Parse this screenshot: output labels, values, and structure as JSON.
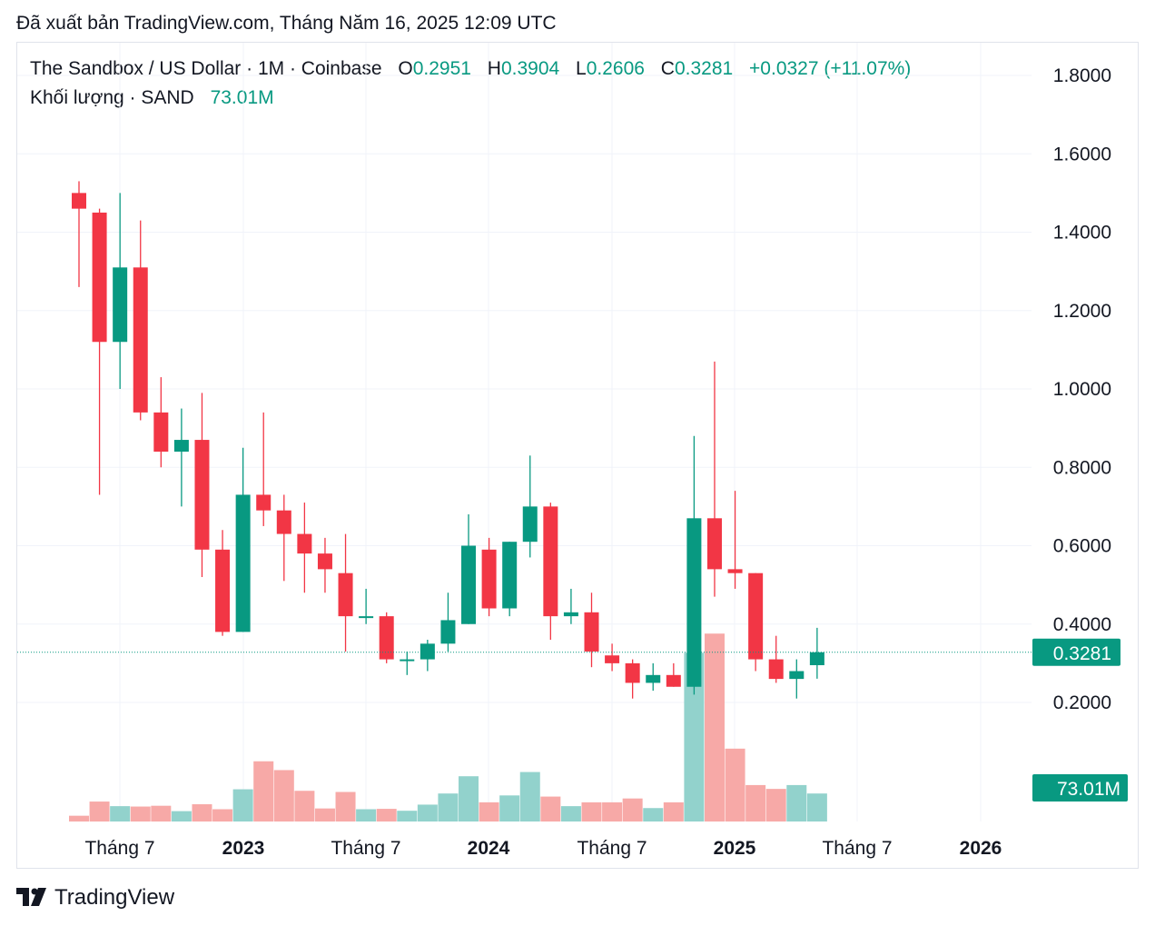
{
  "header": {
    "published": "Đã xuất bản TradingView.com, Tháng Năm 16, 2025 12:09 UTC"
  },
  "legend": {
    "symbol": "The Sandbox / US Dollar · 1M · Coinbase",
    "o_label": "O",
    "o_value": "0.2951",
    "h_label": "H",
    "h_value": "0.3904",
    "l_label": "L",
    "l_value": "0.2606",
    "c_label": "C",
    "c_value": "0.3281",
    "change": "+0.0327 (+11.07%)",
    "volume_label": "Khối lượng · SAND",
    "volume_value": "73.01M"
  },
  "price_badge": "0.3281",
  "volume_badge": "73.01M",
  "footer": {
    "brand": "TradingView"
  },
  "colors": {
    "up": "#089981",
    "down": "#f23645",
    "up_volume": "#92d2cc",
    "down_volume": "#f7a9a7",
    "grid": "#f0f3fa"
  },
  "chart_data": {
    "type": "candlestick",
    "interval": "1M",
    "y_ticks": [
      "1.8000",
      "1.6000",
      "1.4000",
      "1.2000",
      "1.0000",
      "0.8000",
      "0.6000",
      "0.4000",
      "0.2000"
    ],
    "y_range": [
      0.0,
      1.8
    ],
    "x_labels": [
      "Tháng 7",
      "2023",
      "Tháng 7",
      "2024",
      "Tháng 7",
      "2025",
      "Tháng 7",
      "2026"
    ],
    "candles": [
      {
        "date": "2022-04",
        "o": 1.5,
        "h": 1.53,
        "l": 1.26,
        "c": 1.46,
        "v": 1.5
      },
      {
        "date": "2022-05",
        "o": 1.45,
        "h": 1.46,
        "l": 0.73,
        "c": 1.12,
        "v": 5.2
      },
      {
        "date": "2022-06",
        "o": 1.12,
        "h": 1.5,
        "l": 1.0,
        "c": 1.31,
        "v": 4.0
      },
      {
        "date": "2022-07",
        "o": 1.31,
        "h": 1.43,
        "l": 0.92,
        "c": 0.94,
        "v": 3.9
      },
      {
        "date": "2022-08",
        "o": 0.94,
        "h": 1.03,
        "l": 0.8,
        "c": 0.84,
        "v": 4.1
      },
      {
        "date": "2022-09",
        "o": 0.84,
        "h": 0.95,
        "l": 0.7,
        "c": 0.87,
        "v": 2.7
      },
      {
        "date": "2022-10",
        "o": 0.87,
        "h": 0.99,
        "l": 0.52,
        "c": 0.59,
        "v": 4.5
      },
      {
        "date": "2022-11",
        "o": 0.59,
        "h": 0.64,
        "l": 0.37,
        "c": 0.38,
        "v": 3.2
      },
      {
        "date": "2022-12",
        "o": 0.38,
        "h": 0.85,
        "l": 0.38,
        "c": 0.73,
        "v": 8.4
      },
      {
        "date": "2023-01",
        "o": 0.73,
        "h": 0.94,
        "l": 0.65,
        "c": 0.69,
        "v": 15.7
      },
      {
        "date": "2023-02",
        "o": 0.69,
        "h": 0.73,
        "l": 0.51,
        "c": 0.63,
        "v": 13.4
      },
      {
        "date": "2023-03",
        "o": 0.63,
        "h": 0.71,
        "l": 0.48,
        "c": 0.58,
        "v": 8.0
      },
      {
        "date": "2023-04",
        "o": 0.58,
        "h": 0.62,
        "l": 0.48,
        "c": 0.54,
        "v": 3.4
      },
      {
        "date": "2023-05",
        "o": 0.53,
        "h": 0.63,
        "l": 0.33,
        "c": 0.42,
        "v": 7.7
      },
      {
        "date": "2023-06",
        "o": 0.42,
        "h": 0.49,
        "l": 0.4,
        "c": 0.42,
        "v": 3.2
      },
      {
        "date": "2023-07",
        "o": 0.42,
        "h": 0.43,
        "l": 0.3,
        "c": 0.31,
        "v": 3.3
      },
      {
        "date": "2023-08",
        "o": 0.31,
        "h": 0.33,
        "l": 0.27,
        "c": 0.31,
        "v": 2.8
      },
      {
        "date": "2023-09",
        "o": 0.31,
        "h": 0.36,
        "l": 0.28,
        "c": 0.35,
        "v": 4.4
      },
      {
        "date": "2023-10",
        "o": 0.35,
        "h": 0.48,
        "l": 0.33,
        "c": 0.41,
        "v": 7.3
      },
      {
        "date": "2023-11",
        "o": 0.4,
        "h": 0.68,
        "l": 0.4,
        "c": 0.6,
        "v": 11.8
      },
      {
        "date": "2023-12",
        "o": 0.59,
        "h": 0.62,
        "l": 0.42,
        "c": 0.44,
        "v": 5.0
      },
      {
        "date": "2024-01",
        "o": 0.44,
        "h": 0.61,
        "l": 0.42,
        "c": 0.61,
        "v": 6.8
      },
      {
        "date": "2024-02",
        "o": 0.61,
        "h": 0.83,
        "l": 0.57,
        "c": 0.7,
        "v": 12.9
      },
      {
        "date": "2024-03",
        "o": 0.7,
        "h": 0.71,
        "l": 0.36,
        "c": 0.42,
        "v": 6.5
      },
      {
        "date": "2024-04",
        "o": 0.42,
        "h": 0.49,
        "l": 0.4,
        "c": 0.43,
        "v": 4.0
      },
      {
        "date": "2024-05",
        "o": 0.43,
        "h": 0.48,
        "l": 0.29,
        "c": 0.33,
        "v": 5.0
      },
      {
        "date": "2024-06",
        "o": 0.32,
        "h": 0.35,
        "l": 0.28,
        "c": 0.3,
        "v": 5.0
      },
      {
        "date": "2024-07",
        "o": 0.3,
        "h": 0.31,
        "l": 0.21,
        "c": 0.25,
        "v": 6.0
      },
      {
        "date": "2024-08",
        "o": 0.25,
        "h": 0.3,
        "l": 0.23,
        "c": 0.27,
        "v": 3.5
      },
      {
        "date": "2024-09",
        "o": 0.27,
        "h": 0.3,
        "l": 0.24,
        "c": 0.24,
        "v": 5.0
      },
      {
        "date": "2024-10",
        "o": 0.24,
        "h": 0.88,
        "l": 0.22,
        "c": 0.67,
        "v": 44.0
      },
      {
        "date": "2024-11",
        "o": 0.67,
        "h": 1.07,
        "l": 0.47,
        "c": 0.54,
        "v": 49.0
      },
      {
        "date": "2024-12",
        "o": 0.54,
        "h": 0.74,
        "l": 0.49,
        "c": 0.53,
        "v": 19.0
      },
      {
        "date": "2025-01",
        "o": 0.53,
        "h": 0.53,
        "l": 0.28,
        "c": 0.31,
        "v": 9.5
      },
      {
        "date": "2025-02",
        "o": 0.31,
        "h": 0.37,
        "l": 0.25,
        "c": 0.26,
        "v": 8.5
      },
      {
        "date": "2025-03",
        "o": 0.26,
        "h": 0.31,
        "l": 0.21,
        "c": 0.28,
        "v": 9.5
      },
      {
        "date": "2025-04",
        "o": 0.2951,
        "h": 0.3904,
        "l": 0.2606,
        "c": 0.3281,
        "v": 7.3
      }
    ]
  }
}
